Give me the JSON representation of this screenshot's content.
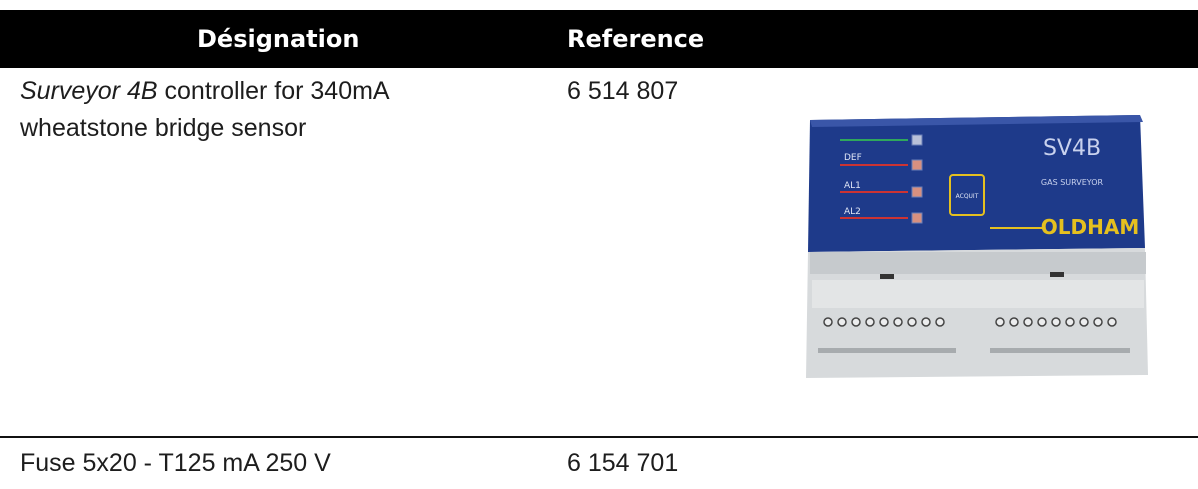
{
  "table": {
    "headers": {
      "designation": "Désignation",
      "reference": "Reference"
    },
    "rows": [
      {
        "designation_italic": "Surveyor 4B",
        "designation_rest": " controller for 340mA",
        "designation_line2": "wheatstone bridge sensor",
        "reference": "6 514 807"
      },
      {
        "designation": "Fuse 5x20 - T125 mA 250 V",
        "reference": "6 154 701"
      }
    ]
  },
  "device": {
    "model_label": "SV4B",
    "subtitle": "GAS SURVEYOR",
    "brand": "OLDHAM",
    "button_label": "ACQUIT",
    "led_labels": [
      "DEF",
      "AL1",
      "AL2"
    ]
  }
}
